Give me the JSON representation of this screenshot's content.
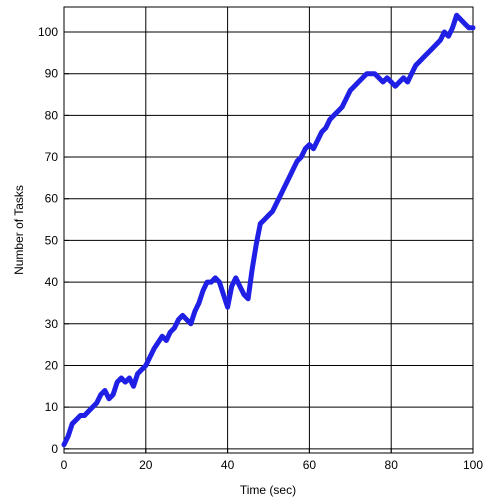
{
  "chart_data": {
    "type": "line",
    "xlabel": "Time (sec)",
    "ylabel": "Number of Tasks",
    "xlim": [
      0,
      100
    ],
    "ylim": [
      -1,
      106
    ],
    "xticks": [
      0,
      20,
      40,
      60,
      80,
      100
    ],
    "yticks": [
      0,
      10,
      20,
      30,
      40,
      50,
      60,
      70,
      80,
      90,
      100
    ],
    "grid": true,
    "series_color": "#1f1fe6",
    "series": [
      {
        "x": [
          0,
          1,
          2,
          3,
          4,
          5,
          6,
          7,
          8,
          9,
          10,
          11,
          12,
          13,
          14,
          15,
          16,
          17,
          18,
          19,
          20,
          22,
          24,
          25,
          26,
          27,
          28,
          29,
          30,
          31,
          32,
          33,
          34,
          35,
          36,
          37,
          38,
          39,
          40,
          41,
          42,
          43,
          44,
          45,
          46,
          47,
          48,
          49,
          50,
          51,
          52,
          53,
          54,
          55,
          56,
          57,
          58,
          59,
          60,
          61,
          62,
          63,
          64,
          65,
          66,
          67,
          68,
          69,
          70,
          71,
          72,
          73,
          74,
          75,
          76,
          77,
          78,
          79,
          80,
          81,
          82,
          83,
          84,
          85,
          86,
          87,
          88,
          89,
          90,
          91,
          92,
          93,
          94,
          95,
          96,
          97,
          98,
          99,
          100
        ],
        "y": [
          1,
          3,
          6,
          7,
          8,
          8,
          9,
          10,
          11,
          13,
          14,
          12,
          13,
          16,
          17,
          16,
          17,
          15,
          18,
          19,
          20,
          24,
          27,
          26,
          28,
          29,
          31,
          32,
          31,
          30,
          33,
          35,
          38,
          40,
          40,
          41,
          40,
          37,
          34,
          39,
          41,
          39,
          37,
          36,
          43,
          49,
          54,
          55,
          56,
          57,
          59,
          61,
          63,
          65,
          67,
          69,
          70,
          72,
          73,
          72,
          74,
          76,
          77,
          79,
          80,
          81,
          82,
          84,
          86,
          87,
          88,
          89,
          90,
          90,
          90,
          89,
          88,
          89,
          88,
          87,
          88,
          89,
          88,
          90,
          92,
          93,
          94,
          95,
          96,
          97,
          98,
          100,
          99,
          101,
          104,
          103,
          102,
          101,
          101
        ]
      }
    ]
  }
}
